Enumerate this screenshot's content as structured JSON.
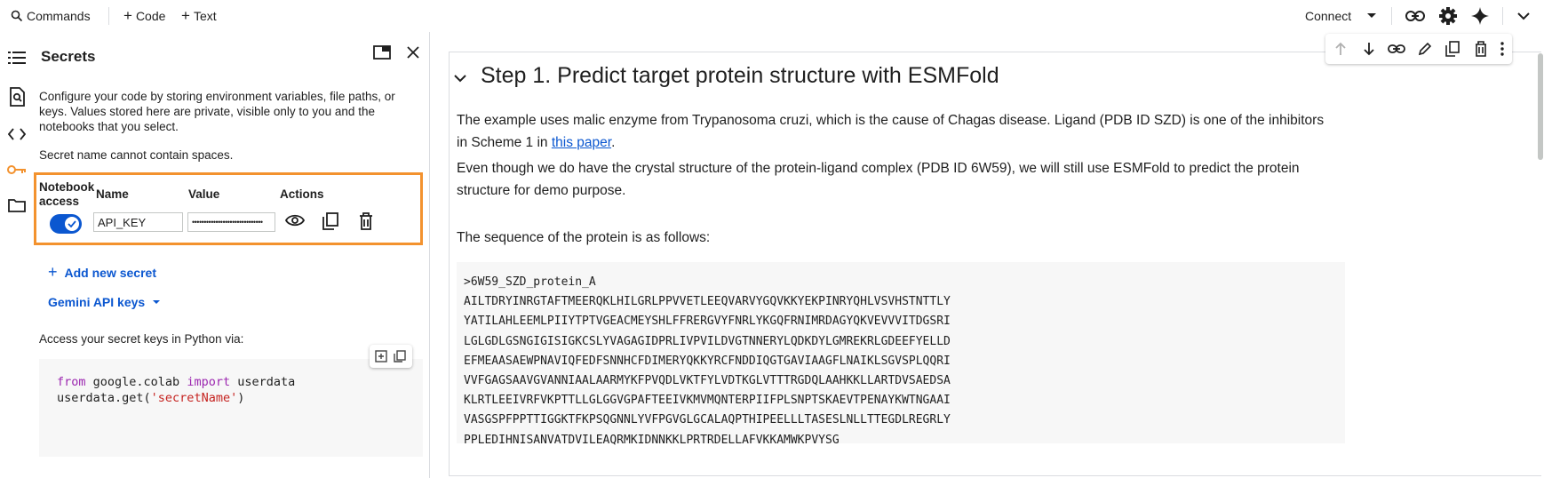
{
  "topbar": {
    "commands_label": "Commands",
    "code_label": "Code",
    "text_label": "Text",
    "connect_label": "Connect"
  },
  "panel": {
    "title": "Secrets",
    "description_line1": "Configure your code by storing environment variables, file paths, or",
    "description_line2": "keys. Values stored here are private, visible only to you and the",
    "description_line3": "notebooks that you select.",
    "warning": "Secret name cannot contain spaces.",
    "table": {
      "headers": {
        "notebook_access_line1": "Notebook",
        "notebook_access_line2": "access",
        "name": "Name",
        "value": "Value",
        "actions": "Actions"
      },
      "row": {
        "name": "API_KEY",
        "value": "••••••••••••••••••••••••••••••",
        "access_enabled": true
      }
    },
    "add_new_secret_label": "Add new secret",
    "gemini_keys_label": "Gemini API keys",
    "access_label": "Access your secret keys in Python via:",
    "code": {
      "line1_from": "from",
      "line1_module": " google.colab ",
      "line1_import": "import",
      "line1_name": " userdata",
      "line2_call": "userdata.get(",
      "line2_arg": "'secretName'",
      "line2_close": ")"
    }
  },
  "main": {
    "title": "Step 1. Predict target protein structure with ESMFold",
    "para1_line1": "The example uses malic enzyme from Trypanosoma cruzi, which is the cause of Chagas disease. Ligand (PDB ID SZD) is one of the inhibitors",
    "para1_line2_pre": "in Scheme 1 in ",
    "para1_link": "this paper",
    "para1_line2_post": ".",
    "para2_line1": "Even though we do have the crystal structure of the protein-ligand complex (PDB ID 6W59), we will still use ESMFold to predict the protein",
    "para2_line2": "structure for demo purpose.",
    "para3": "The sequence of the protein is as follows:",
    "sequence": [
      ">6W59_SZD_protein_A",
      "AILTDRYINRGTAFTMEERQKLHILGRLPPVVETLEEQVARVYGQVKKYEKPINRYQHLVSVHSTNTTLY",
      "YATILAHLEEMLPIIYTPTVGEACMEYSHLFFRERGVYFNRLYKGQFRNIMRDAGYQKVEVVVITDGSRI",
      "LGLGDLGSNGIGISIGKCSLYVAGAGIDPRLIVPVILDVGTNNERYLQDKDYLGMREKRLGDEEFYELLD",
      "EFMEAASAEWPNAVIQFEDFSNNHCFDIMERYQKKYRCFNDDIQGTGAVIAAGFLNAIKLSGVSPLQQRI",
      "VVFGAGSAAVGVANNIAALAARMYKFPVQDLVKTFYLVDTKGLVTTTRGDQLAAHKKLLARTDVSAEDSA",
      "KLRTLEEIVRFVKPTTLLGLGGVGPAFTEEIVKMVMQNTERPIIFPLSNPTSKAEVTPENAYKWTNGAAI",
      "VASGSPFPPTTIGGKTFKPSQGNNLYVFPGVGLGCALAQPTHIPEELLLTASESLNLLTTEGDLREGRLY",
      "PPLEDIHNISANVATDVILEAQRMKIDNNKKLPRTRDELLAFVKKAMWKPVYSG"
    ]
  },
  "colors": {
    "accent": "#0b57d0",
    "highlight_border": "#f3922e",
    "toggle_on": "#0b57d0"
  }
}
